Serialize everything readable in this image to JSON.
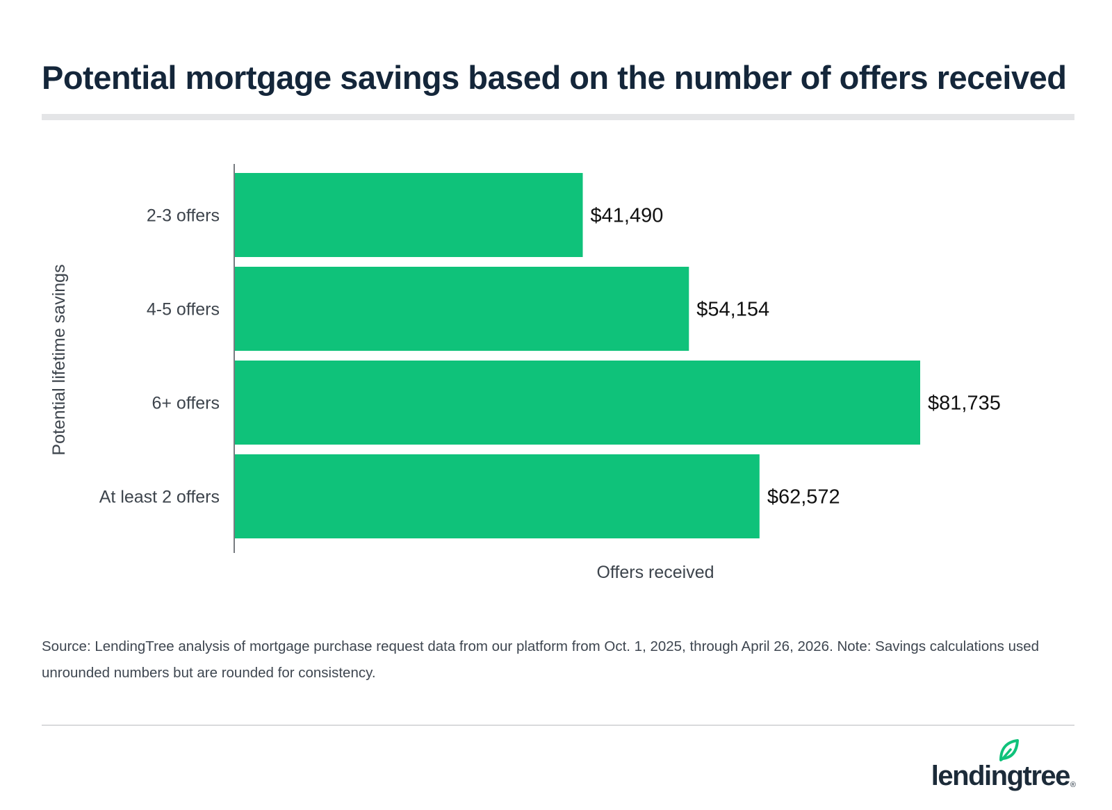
{
  "title": "Potential mortgage savings based on the number of offers received",
  "chart_data": {
    "type": "bar",
    "orientation": "horizontal",
    "categories": [
      "2-3 offers",
      "4-5 offers",
      "6+ offers",
      "At least 2 offers"
    ],
    "values": [
      41490,
      54154,
      81735,
      62572
    ],
    "value_labels": [
      "$41,490",
      "$54,154",
      "$81,735",
      "$62,572"
    ],
    "xlabel": "Offers received",
    "ylabel": "Potential lifetime savings",
    "xlim": [
      0,
      90000
    ],
    "grid": false,
    "legend": "none",
    "bar_color": "#0fc27a"
  },
  "source": "Source: LendingTree analysis of mortgage purchase request data from our platform from Oct. 1, 2025, through April 26, 2026. Note: Savings calculations used unrounded numbers but are rounded for consistency.",
  "logo": {
    "text": "lendingtree",
    "registered": "®",
    "leaf_color": "#0fc27a"
  }
}
